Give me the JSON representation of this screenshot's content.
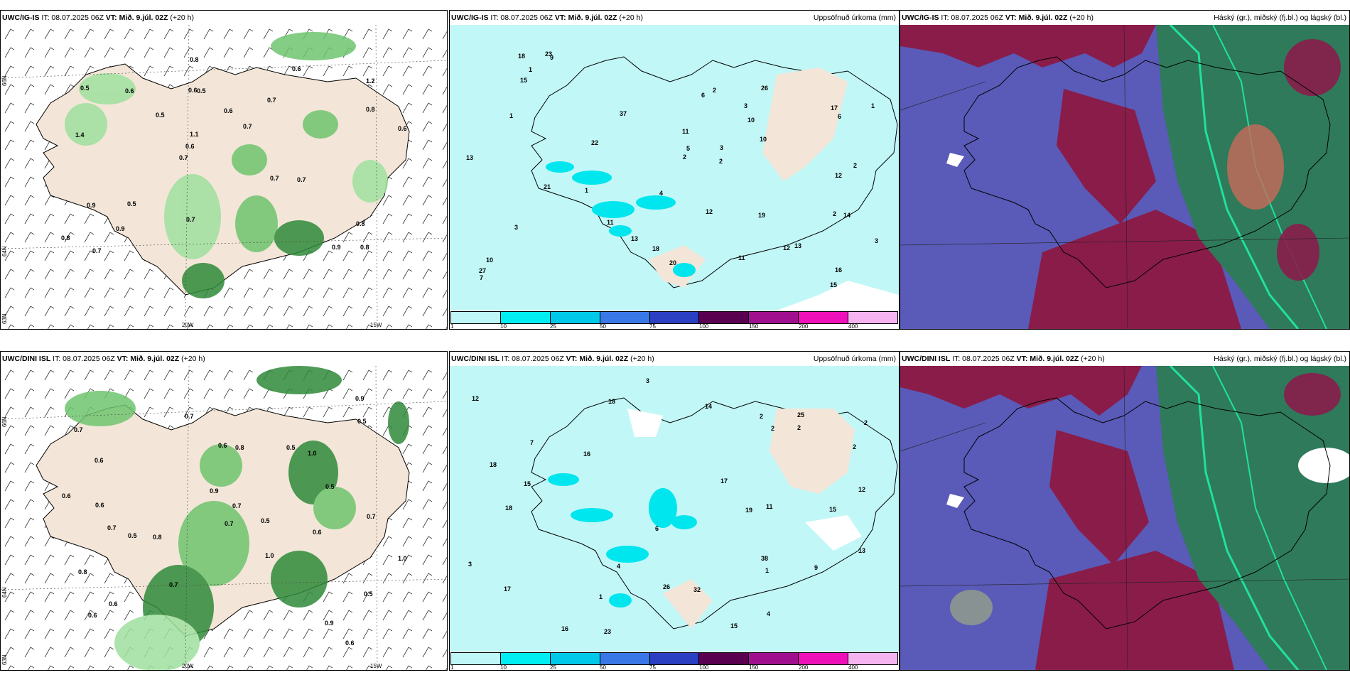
{
  "panels": [
    {
      "id": "p1",
      "model": "UWC/IG-IS",
      "it": "IT: 08.07.2025 06Z",
      "vt_label": "VT:",
      "vt": "Mið. 9.júl. 02Z",
      "offset": "(+20 h)",
      "right": ""
    },
    {
      "id": "p2",
      "model": "UWC/IG-IS",
      "it": "IT: 08.07.2025 06Z",
      "vt_label": "VT:",
      "vt": "Mið. 9.júl. 02Z",
      "offset": "(+20 h)",
      "right": "Uppsöfnuð úrkoma (mm)"
    },
    {
      "id": "p3",
      "model": "UWC/IG-IS",
      "it": "IT: 08.07.2025 06Z",
      "vt_label": "VT:",
      "vt": "Mið. 9.júl. 02Z",
      "offset": "(+20 h)",
      "right": "Háský (gr.), miðský (fj.bl.) og lágský (bl.)"
    },
    {
      "id": "p4",
      "model": "UWC/DINI ISL",
      "it": "IT: 08.07.2025 06Z",
      "vt_label": "VT:",
      "vt": "Mið. 9.júl. 02Z",
      "offset": "(+20 h)",
      "right": ""
    },
    {
      "id": "p5",
      "model": "UWC/DINI ISL",
      "it": "IT: 08.07.2025 06Z",
      "vt_label": "VT:",
      "vt": "Mið. 9.júl. 02Z",
      "offset": "(+20 h)",
      "right": "Uppsöfnuð úrkoma (mm)"
    },
    {
      "id": "p6",
      "model": "UWC/DINI ISL",
      "it": "IT: 08.07.2025 06Z",
      "vt_label": "VT:",
      "vt": "Mið. 9.júl. 02Z",
      "offset": "(+20 h)",
      "right": "Háský (gr.), miðský (fj.bl.) og lágský (bl.)"
    }
  ],
  "axis_labels": {
    "lat_66": "66N",
    "lat_64": "64N",
    "lat_63": "63N",
    "lon_20": "20W",
    "lon_15": "15W"
  },
  "precip_legend": {
    "ticks": [
      "1",
      "10",
      "25",
      "50",
      "75",
      "100",
      "150",
      "200",
      "400"
    ],
    "colors": [
      "#bff7f9",
      "#00eef2",
      "#00c8e8",
      "#3a78e8",
      "#2a3fc2",
      "#5a0050",
      "#a0108e",
      "#ee10b8",
      "#f5b4f0"
    ]
  },
  "wind_labels_top": [
    "0.8",
    "1.4",
    "1.2",
    "0.7",
    "0.7",
    "0.7",
    "0.6",
    "0.6",
    "0.9",
    "0.5",
    "0.8",
    "0.9",
    "0.5",
    "0.7",
    "0.7",
    "0.5",
    "0.8",
    "0.6",
    "0.7",
    "0.8",
    "0.6",
    "0.7",
    "1.1",
    "0.6",
    "0.6",
    "0.5",
    "0.9",
    "0.8"
  ],
  "wind_labels_bottom": [
    "0.6",
    "0.7",
    "1.0",
    "0.7",
    "0.5",
    "0.6",
    "0.6",
    "0.8",
    "1.0",
    "0.6",
    "0.5",
    "0.9",
    "0.7",
    "0.7",
    "0.5",
    "0.8",
    "0.6",
    "0.7",
    "0.6",
    "0.6",
    "0.9",
    "0.8",
    "0.5",
    "1.0",
    "0.7",
    "0.6",
    "0.5",
    "0.7",
    "0.9",
    "0.5"
  ],
  "precip_labels_top": [
    "3",
    "3",
    "2",
    "3",
    "2",
    "13",
    "11",
    "10",
    "14",
    "10",
    "9",
    "12",
    "12",
    "20",
    "18",
    "13",
    "15",
    "17",
    "16",
    "19",
    "21",
    "26",
    "22",
    "37",
    "23",
    "13",
    "12",
    "11",
    "15",
    "10",
    "18",
    "27",
    "5",
    "6",
    "7",
    "6",
    "11",
    "4",
    "1",
    "1",
    "3",
    "2",
    "2",
    "1",
    "1",
    "2"
  ],
  "precip_labels_bottom": [
    "2",
    "3",
    "2",
    "7",
    "11",
    "15",
    "26",
    "19",
    "15",
    "12",
    "17",
    "14",
    "18",
    "15",
    "16",
    "18",
    "25",
    "17",
    "16",
    "38",
    "23",
    "13",
    "12",
    "18",
    "32",
    "9",
    "6",
    "4",
    "4",
    "3",
    "1",
    "2",
    "1",
    "2",
    "2"
  ]
}
